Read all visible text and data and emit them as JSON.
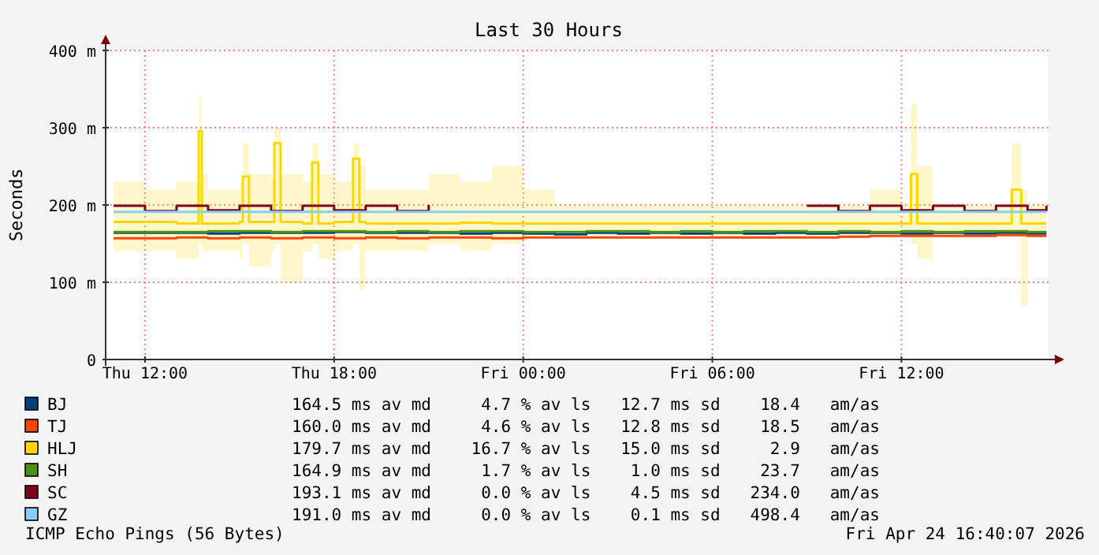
{
  "chart_data": {
    "type": "step",
    "title": "Last 30 Hours",
    "ylabel": "Seconds",
    "x": [
      "2026-04-23T11:00",
      "2026-04-23T12:00",
      "2026-04-23T13:00",
      "2026-04-23T14:00",
      "2026-04-23T15:00",
      "2026-04-23T16:00",
      "2026-04-23T17:00",
      "2026-04-23T18:00",
      "2026-04-23T19:00",
      "2026-04-23T20:00",
      "2026-04-23T21:00",
      "2026-04-23T22:00",
      "2026-04-23T23:00",
      "2026-04-24T00:00",
      "2026-04-24T01:00",
      "2026-04-24T02:00",
      "2026-04-24T03:00",
      "2026-04-24T04:00",
      "2026-04-24T05:00",
      "2026-04-24T06:00",
      "2026-04-24T07:00",
      "2026-04-24T08:00",
      "2026-04-24T09:00",
      "2026-04-24T10:00",
      "2026-04-24T11:00",
      "2026-04-24T12:00",
      "2026-04-24T13:00",
      "2026-04-24T14:00",
      "2026-04-24T15:00",
      "2026-04-24T16:00",
      "2026-04-24T16:36"
    ],
    "xlim": [
      "2026-04-23T10:45",
      "2026-04-24T16:40"
    ],
    "xticks": [
      {
        "value": "2026-04-23T12:00",
        "label": "Thu 12:00"
      },
      {
        "value": "2026-04-23T18:00",
        "label": "Thu 18:00"
      },
      {
        "value": "2026-04-24T00:00",
        "label": "Fri 00:00"
      },
      {
        "value": "2026-04-24T06:00",
        "label": "Fri 06:00"
      },
      {
        "value": "2026-04-24T12:00",
        "label": "Fri 12:00"
      }
    ],
    "ylim": [
      0,
      400
    ],
    "yticks": [
      {
        "value": 0,
        "label": "0"
      },
      {
        "value": 100,
        "label": "100 m"
      },
      {
        "value": 200,
        "label": "200 m"
      },
      {
        "value": 300,
        "label": "300 m"
      },
      {
        "value": 400,
        "label": "400 m"
      }
    ],
    "grid": true,
    "legend": "bottom",
    "series": [
      {
        "name": "BJ",
        "color": "#003f7f",
        "values": [
          164,
          164,
          164,
          163,
          164,
          164,
          164,
          165,
          164,
          164,
          164,
          163,
          164,
          163,
          162,
          164,
          163,
          164,
          163,
          164,
          163,
          164,
          163,
          164,
          164,
          163,
          164,
          163,
          164,
          163,
          163
        ]
      },
      {
        "name": "TJ",
        "color": "#ff4500",
        "values": [
          157,
          157,
          158,
          157,
          158,
          157,
          158,
          157,
          158,
          157,
          158,
          158,
          157,
          158,
          158,
          158,
          158,
          158,
          158,
          158,
          158,
          158,
          158,
          159,
          160,
          160,
          160,
          160,
          161,
          160,
          160
        ]
      },
      {
        "name": "HLJ",
        "color": "#ffd700",
        "x": [
          "2026-04-23T11:00",
          "2026-04-23T12:00",
          "2026-04-23T13:00",
          "2026-04-23T13:42",
          "2026-04-23T13:48",
          "2026-04-23T14:00",
          "2026-04-23T15:00",
          "2026-04-23T15:06",
          "2026-04-23T15:18",
          "2026-04-23T16:00",
          "2026-04-23T16:06",
          "2026-04-23T16:18",
          "2026-04-23T17:00",
          "2026-04-23T17:18",
          "2026-04-23T17:30",
          "2026-04-23T18:00",
          "2026-04-23T18:36",
          "2026-04-23T18:48",
          "2026-04-23T19:00",
          "2026-04-23T20:00",
          "2026-04-23T21:00",
          "2026-04-23T22:00",
          "2026-04-23T23:00",
          "2026-04-24T00:00",
          "2026-04-24T01:00",
          "2026-04-24T02:00",
          "2026-04-24T03:00",
          "2026-04-24T04:00",
          "2026-04-24T05:00",
          "2026-04-24T06:00",
          "2026-04-24T07:00",
          "2026-04-24T08:00",
          "2026-04-24T09:00",
          "2026-04-24T10:00",
          "2026-04-24T11:00",
          "2026-04-24T12:00",
          "2026-04-24T12:18",
          "2026-04-24T12:30",
          "2026-04-24T13:00",
          "2026-04-24T14:00",
          "2026-04-24T15:00",
          "2026-04-24T15:30",
          "2026-04-24T15:48",
          "2026-04-24T16:00",
          "2026-04-24T16:36"
        ],
        "values": [
          178,
          178,
          176,
          296,
          176,
          176,
          178,
          237,
          178,
          178,
          280,
          178,
          176,
          255,
          176,
          178,
          260,
          178,
          176,
          176,
          176,
          177,
          176,
          176,
          176,
          176,
          176,
          176,
          176,
          176,
          176,
          176,
          176,
          176,
          176,
          176,
          240,
          176,
          176,
          176,
          176,
          220,
          176,
          176,
          176
        ],
        "lower": [
          140,
          140,
          130,
          150,
          140,
          140,
          130,
          150,
          120,
          140,
          150,
          100,
          140,
          150,
          130,
          140,
          150,
          90,
          140,
          140,
          150,
          140,
          150,
          160,
          160,
          160,
          160,
          160,
          160,
          160,
          160,
          160,
          160,
          160,
          160,
          160,
          150,
          130,
          160,
          160,
          160,
          160,
          70,
          160,
          160
        ],
        "upper": [
          230,
          220,
          230,
          340,
          240,
          220,
          230,
          280,
          240,
          230,
          300,
          240,
          230,
          280,
          240,
          230,
          280,
          250,
          220,
          220,
          240,
          230,
          250,
          220,
          200,
          200,
          200,
          200,
          200,
          200,
          200,
          200,
          200,
          200,
          220,
          200,
          330,
          250,
          200,
          200,
          200,
          280,
          220,
          200,
          200
        ]
      },
      {
        "name": "SH",
        "color": "#4d9216",
        "values": [
          165,
          165,
          165,
          166,
          166,
          165,
          166,
          166,
          165,
          166,
          165,
          166,
          166,
          165,
          165,
          166,
          166,
          165,
          166,
          165,
          166,
          166,
          165,
          166,
          165,
          166,
          165,
          166,
          166,
          165,
          165
        ]
      },
      {
        "name": "SC",
        "color": "#7f001f",
        "values": [
          199,
          192,
          199,
          193,
          199,
          192,
          199,
          193,
          199,
          192,
          200,
          null,
          null,
          null,
          null,
          null,
          null,
          null,
          null,
          null,
          null,
          null,
          199,
          192,
          199,
          193,
          199,
          192,
          199,
          193,
          199
        ]
      },
      {
        "name": "GZ",
        "color": "#87cefa",
        "values": [
          191,
          191,
          191,
          191,
          191,
          191,
          191,
          191,
          191,
          191,
          191,
          191,
          191,
          191,
          191,
          191,
          191,
          191,
          191,
          191,
          191,
          191,
          191,
          191,
          191,
          191,
          191,
          191,
          191,
          191,
          191
        ]
      }
    ],
    "annotations": [
      "164.5 ms av md     4.7 % av ls   12.7 ms sd    18.4   am/as",
      "160.0 ms av md     4.6 % av ls   12.8 ms sd    18.5   am/as",
      "179.7 ms av md    16.7 % av ls   15.0 ms sd     2.9   am/as",
      "164.9 ms av md     1.7 % av ls    1.0 ms sd    23.7   am/as",
      "193.1 ms av md     0.0 % av ls    4.5 ms sd   234.0   am/as",
      "191.0 ms av md     0.0 % av ls    0.1 ms sd   498.4   am/as",
      "ICMP Echo Pings (56 Bytes)",
      "Fri Apr 24 16:40:07 2026"
    ]
  }
}
